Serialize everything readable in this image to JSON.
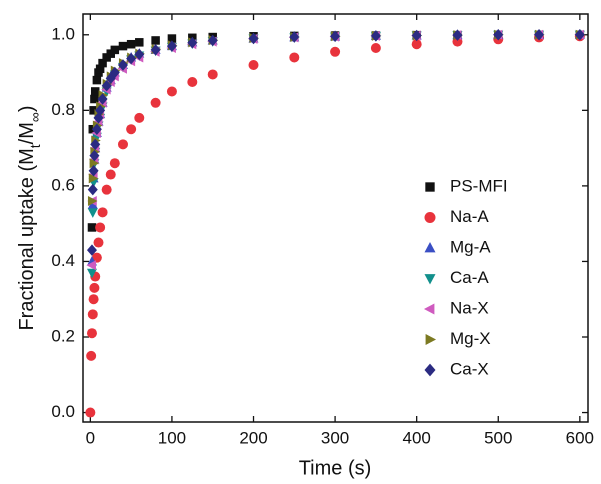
{
  "chart_data": {
    "type": "scatter",
    "xlabel": "Time (s)",
    "ylabel": [
      "Fractional uptake (M",
      "t",
      "/M",
      "∞",
      ")"
    ],
    "xlim": [
      -9,
      610
    ],
    "ylim": [
      -0.025,
      1.055
    ],
    "xticks": [
      0,
      100,
      200,
      300,
      400,
      500,
      600
    ],
    "yticks": [
      {
        "value": 0,
        "label": "0.0"
      },
      0.2,
      0.4,
      0.6,
      0.8,
      {
        "value": 1,
        "label": "1.0"
      }
    ],
    "legend": "right",
    "x": [
      0,
      1,
      2,
      3,
      4,
      5,
      6,
      8,
      10,
      12,
      15,
      20,
      25,
      30,
      40,
      50,
      60,
      80,
      100,
      125,
      150,
      200,
      250,
      300,
      350,
      400,
      450,
      500,
      550,
      600
    ],
    "series": [
      {
        "name": "PS-MFI",
        "color": "#111111",
        "marker": "square",
        "values": [
          null,
          null,
          0.49,
          0.75,
          0.8,
          0.83,
          0.85,
          0.88,
          0.9,
          0.91,
          0.925,
          0.94,
          0.95,
          0.96,
          0.97,
          0.975,
          0.98,
          0.985,
          0.99,
          0.992,
          0.994,
          0.996,
          0.997,
          0.998,
          0.998,
          0.999,
          0.999,
          1.0,
          1.0,
          1.0
        ]
      },
      {
        "name": "Na-A",
        "color": "#e8333c",
        "marker": "circle",
        "values": [
          0,
          0.15,
          0.21,
          0.26,
          0.3,
          0.33,
          0.36,
          0.41,
          0.45,
          0.49,
          0.53,
          0.59,
          0.63,
          0.66,
          0.71,
          0.75,
          0.78,
          0.82,
          0.85,
          0.875,
          0.895,
          0.92,
          0.94,
          0.955,
          0.965,
          0.975,
          0.982,
          0.988,
          0.993,
          0.996
        ]
      },
      {
        "name": "Mg-A",
        "color": "#3a4fc4",
        "marker": "triangle-up",
        "values": [
          null,
          null,
          0.4,
          0.55,
          0.62,
          0.67,
          0.7,
          0.74,
          0.77,
          0.79,
          0.82,
          0.86,
          0.88,
          0.9,
          0.92,
          0.94,
          0.95,
          0.96,
          0.97,
          0.98,
          0.985,
          0.99,
          0.993,
          0.995,
          0.997,
          0.998,
          0.999,
          1.0,
          1.0,
          1.0
        ]
      },
      {
        "name": "Ca-A",
        "color": "#12908c",
        "marker": "triangle-down",
        "values": [
          null,
          null,
          0.37,
          0.53,
          0.61,
          0.66,
          0.69,
          0.73,
          0.76,
          0.78,
          0.81,
          0.85,
          0.875,
          0.895,
          0.915,
          0.935,
          0.945,
          0.958,
          0.968,
          0.977,
          0.983,
          0.99,
          0.993,
          0.995,
          0.997,
          0.998,
          0.999,
          1.0,
          1.0,
          1.0
        ]
      },
      {
        "name": "Na-X",
        "color": "#cf5bbf",
        "marker": "triangle-left",
        "values": [
          null,
          null,
          0.39,
          0.56,
          0.63,
          0.67,
          0.7,
          0.74,
          0.77,
          0.79,
          0.82,
          0.855,
          0.875,
          0.89,
          0.91,
          0.93,
          0.94,
          0.955,
          0.965,
          0.975,
          0.982,
          0.989,
          0.993,
          0.995,
          0.997,
          0.998,
          0.999,
          1.0,
          1.0,
          1.0
        ]
      },
      {
        "name": "Mg-X",
        "color": "#7c7a22",
        "marker": "triangle-right",
        "values": [
          null,
          null,
          0.56,
          0.62,
          0.66,
          0.69,
          0.72,
          0.76,
          0.79,
          0.81,
          0.84,
          0.87,
          0.89,
          0.905,
          0.925,
          0.94,
          0.95,
          0.962,
          0.972,
          0.98,
          0.986,
          0.991,
          0.994,
          0.996,
          0.997,
          0.998,
          0.999,
          1.0,
          1.0,
          1.0
        ]
      },
      {
        "name": "Ca-X",
        "color": "#2b2b82",
        "marker": "diamond",
        "values": [
          null,
          null,
          0.43,
          0.59,
          0.64,
          0.68,
          0.71,
          0.75,
          0.78,
          0.8,
          0.83,
          0.865,
          0.885,
          0.9,
          0.92,
          0.937,
          0.948,
          0.96,
          0.97,
          0.979,
          0.985,
          0.99,
          0.994,
          0.996,
          0.997,
          0.998,
          0.999,
          1.0,
          1.0,
          1.0
        ]
      }
    ]
  }
}
